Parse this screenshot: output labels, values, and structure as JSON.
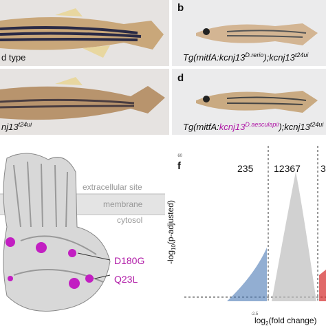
{
  "panels": {
    "a": {
      "caption": "d type"
    },
    "b": {
      "letter": "b",
      "caption": {
        "prefix": "Tg(mitfA:kcnj13",
        "sup1": "D.rerio",
        "mid": ");kcnj13",
        "sup2": "t24ui"
      }
    },
    "c": {
      "caption": {
        "text": "nj13",
        "sup": "t24ui"
      }
    },
    "d": {
      "letter": "d",
      "caption": {
        "prefix": "Tg(mitfA:",
        "gene": "kcnj13",
        "sup1": "D.aesculapii",
        "mid": ");kcnj13",
        "sup2": "t24ui"
      }
    },
    "e": {
      "layers": [
        "extracellular site",
        "membrane",
        "cytosol"
      ],
      "mutations": [
        "D180G",
        "Q23L"
      ]
    },
    "f": {
      "letter": "f",
      "counts": [
        235,
        12367,
        3
      ],
      "y_label": {
        "prefix": "-log",
        "sub": "10",
        "suffix": "(p-adjusted)"
      },
      "x_label": {
        "prefix": "log",
        "sub": "2",
        "suffix": "(fold change)"
      },
      "x_ticks": [
        "-2.5"
      ],
      "y_ticks": [
        "60"
      ]
    }
  }
}
